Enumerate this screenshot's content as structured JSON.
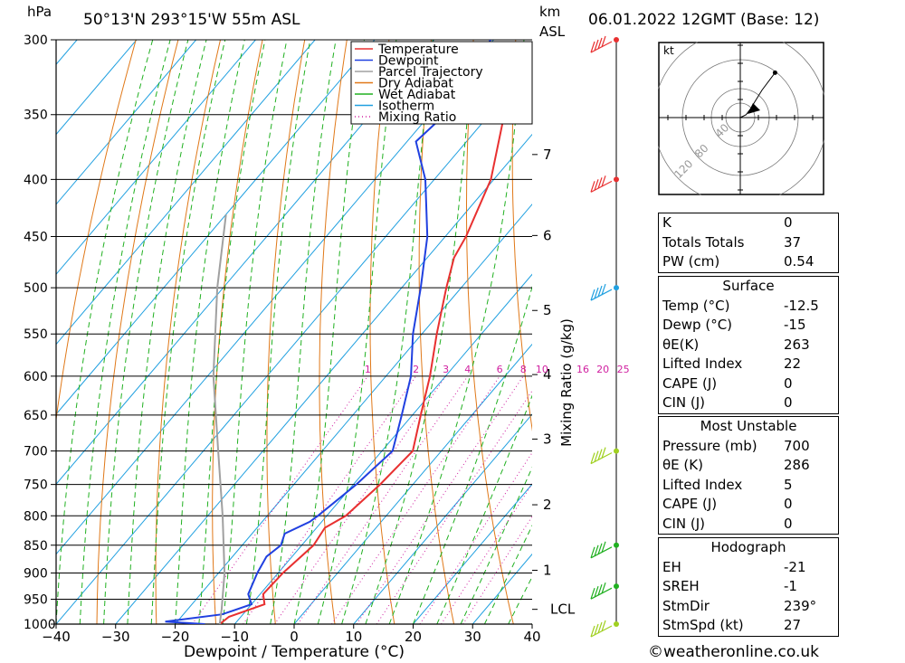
{
  "header": {
    "pressure_unit": "hPa",
    "location": "50°13'N  293°15'W  55m  ASL",
    "km_label": "km",
    "asl_label": "ASL",
    "datetime": "06.01.2022  12GMT  (Base: 12)"
  },
  "chart_data": {
    "type": "skew-t",
    "xlabel": "Dewpoint / Temperature (°C)",
    "ylabel_left": "hPa",
    "ylabel_right": "Mixing Ratio (g/kg)",
    "x_ticks": [
      -40,
      -30,
      -20,
      -10,
      0,
      10,
      20,
      30,
      40
    ],
    "xlim": [
      -40,
      40
    ],
    "pressure_levels": [
      300,
      350,
      400,
      450,
      500,
      550,
      600,
      650,
      700,
      750,
      800,
      850,
      900,
      950,
      1000
    ],
    "ylim": [
      1000,
      300
    ],
    "km_ticks": [
      {
        "label": "7",
        "p": 380
      },
      {
        "label": "6",
        "p": 449
      },
      {
        "label": "5",
        "p": 524
      },
      {
        "label": "4",
        "p": 598
      },
      {
        "label": "3",
        "p": 683
      },
      {
        "label": "2",
        "p": 782
      },
      {
        "label": "1",
        "p": 895
      }
    ],
    "lcl_label": "LCL",
    "lcl_p": 970,
    "mixing_ratio_labels": [
      "1",
      "2",
      "3",
      "4",
      "6",
      "8",
      "10",
      "16",
      "20",
      "25"
    ],
    "legend": [
      {
        "name": "Temperature",
        "color": "#e83030",
        "style": "solid"
      },
      {
        "name": "Dewpoint",
        "color": "#2040e0",
        "style": "solid"
      },
      {
        "name": "Parcel Trajectory",
        "color": "#a0a0a0",
        "style": "solid"
      },
      {
        "name": "Dry Adiabat",
        "color": "#e07818",
        "style": "solid"
      },
      {
        "name": "Wet Adiabat",
        "color": "#20b020",
        "style": "solid"
      },
      {
        "name": "Isotherm",
        "color": "#20a0e0",
        "style": "solid"
      },
      {
        "name": "Mixing Ratio",
        "color": "#d020a0",
        "style": "dotted"
      }
    ],
    "series": [
      {
        "name": "Temperature",
        "points": [
          [
            1000,
            -12.5
          ],
          [
            985,
            -12.0
          ],
          [
            960,
            -7.8
          ],
          [
            940,
            -9.5
          ],
          [
            900,
            -9.2
          ],
          [
            850,
            -8.0
          ],
          [
            820,
            -8.6
          ],
          [
            800,
            -6.8
          ],
          [
            750,
            -5.5
          ],
          [
            700,
            -4.8
          ],
          [
            650,
            -8.6
          ],
          [
            600,
            -12.6
          ],
          [
            550,
            -17.5
          ],
          [
            500,
            -22.5
          ],
          [
            470,
            -25.5
          ],
          [
            450,
            -26.5
          ],
          [
            400,
            -30.5
          ],
          [
            350,
            -37.5
          ],
          [
            320,
            -41.5
          ],
          [
            300,
            -42.5
          ]
        ]
      },
      {
        "name": "Dewpoint",
        "points": [
          [
            1000,
            -15
          ],
          [
            995,
            -22
          ],
          [
            980,
            -13.5
          ],
          [
            960,
            -10.0
          ],
          [
            940,
            -12.0
          ],
          [
            900,
            -13.5
          ],
          [
            870,
            -14.3
          ],
          [
            850,
            -13.5
          ],
          [
            830,
            -14.5
          ],
          [
            810,
            -12.0
          ],
          [
            800,
            -11.5
          ],
          [
            750,
            -9.5
          ],
          [
            700,
            -8.2
          ],
          [
            650,
            -11.8
          ],
          [
            600,
            -15.8
          ],
          [
            550,
            -21.5
          ],
          [
            500,
            -26.8
          ],
          [
            450,
            -33.0
          ],
          [
            400,
            -41.5
          ],
          [
            370,
            -48.5
          ],
          [
            350,
            -47.5
          ],
          [
            300,
            -50.5
          ]
        ]
      },
      {
        "name": "Parcel Trajectory",
        "points": [
          [
            1000,
            -12.5
          ],
          [
            970,
            -14.3
          ],
          [
            900,
            -19.0
          ],
          [
            800,
            -27.5
          ],
          [
            700,
            -37.5
          ],
          [
            600,
            -49.0
          ],
          [
            500,
            -61.0
          ],
          [
            430,
            -70.0
          ]
        ]
      }
    ],
    "wind_barbs": [
      {
        "p": 300,
        "color": "#e83030"
      },
      {
        "p": 400,
        "color": "#e83030"
      },
      {
        "p": 500,
        "color": "#20a0e0"
      },
      {
        "p": 700,
        "color": "#a0d020"
      },
      {
        "p": 850,
        "color": "#20b020"
      },
      {
        "p": 925,
        "color": "#20b020"
      },
      {
        "p": 1000,
        "color": "#a0d020"
      }
    ],
    "hodograph": {
      "unit_label": "kt",
      "ring_labels": [
        "40",
        "80",
        "120"
      ],
      "trace_kt": [
        [
          0,
          0
        ],
        [
          8,
          4
        ],
        [
          14,
          12
        ],
        [
          30,
          38
        ],
        [
          48,
          62
        ]
      ]
    }
  },
  "indices": [
    {
      "label": "K",
      "value": "0"
    },
    {
      "label": "Totals Totals",
      "value": "37"
    },
    {
      "label": "PW (cm)",
      "value": "0.54"
    }
  ],
  "surface": {
    "title": "Surface",
    "rows": [
      {
        "label": "Temp (°C)",
        "value": "-12.5"
      },
      {
        "label": "Dewp (°C)",
        "value": "-15"
      },
      {
        "label": "θE(K)",
        "value": "263"
      },
      {
        "label": "Lifted Index",
        "value": "22"
      },
      {
        "label": "CAPE (J)",
        "value": "0"
      },
      {
        "label": "CIN (J)",
        "value": "0"
      }
    ]
  },
  "most_unstable": {
    "title": "Most Unstable",
    "rows": [
      {
        "label": "Pressure (mb)",
        "value": "700"
      },
      {
        "label": "θE (K)",
        "value": "286"
      },
      {
        "label": "Lifted Index",
        "value": "5"
      },
      {
        "label": "CAPE (J)",
        "value": "0"
      },
      {
        "label": "CIN (J)",
        "value": "0"
      }
    ]
  },
  "hodograph_table": {
    "title": "Hodograph",
    "rows": [
      {
        "label": "EH",
        "value": "-21"
      },
      {
        "label": "SREH",
        "value": "-1"
      },
      {
        "label": "StmDir",
        "value": "239°"
      },
      {
        "label": "StmSpd (kt)",
        "value": "27"
      }
    ]
  },
  "footer": "©weatheronline.co.uk"
}
